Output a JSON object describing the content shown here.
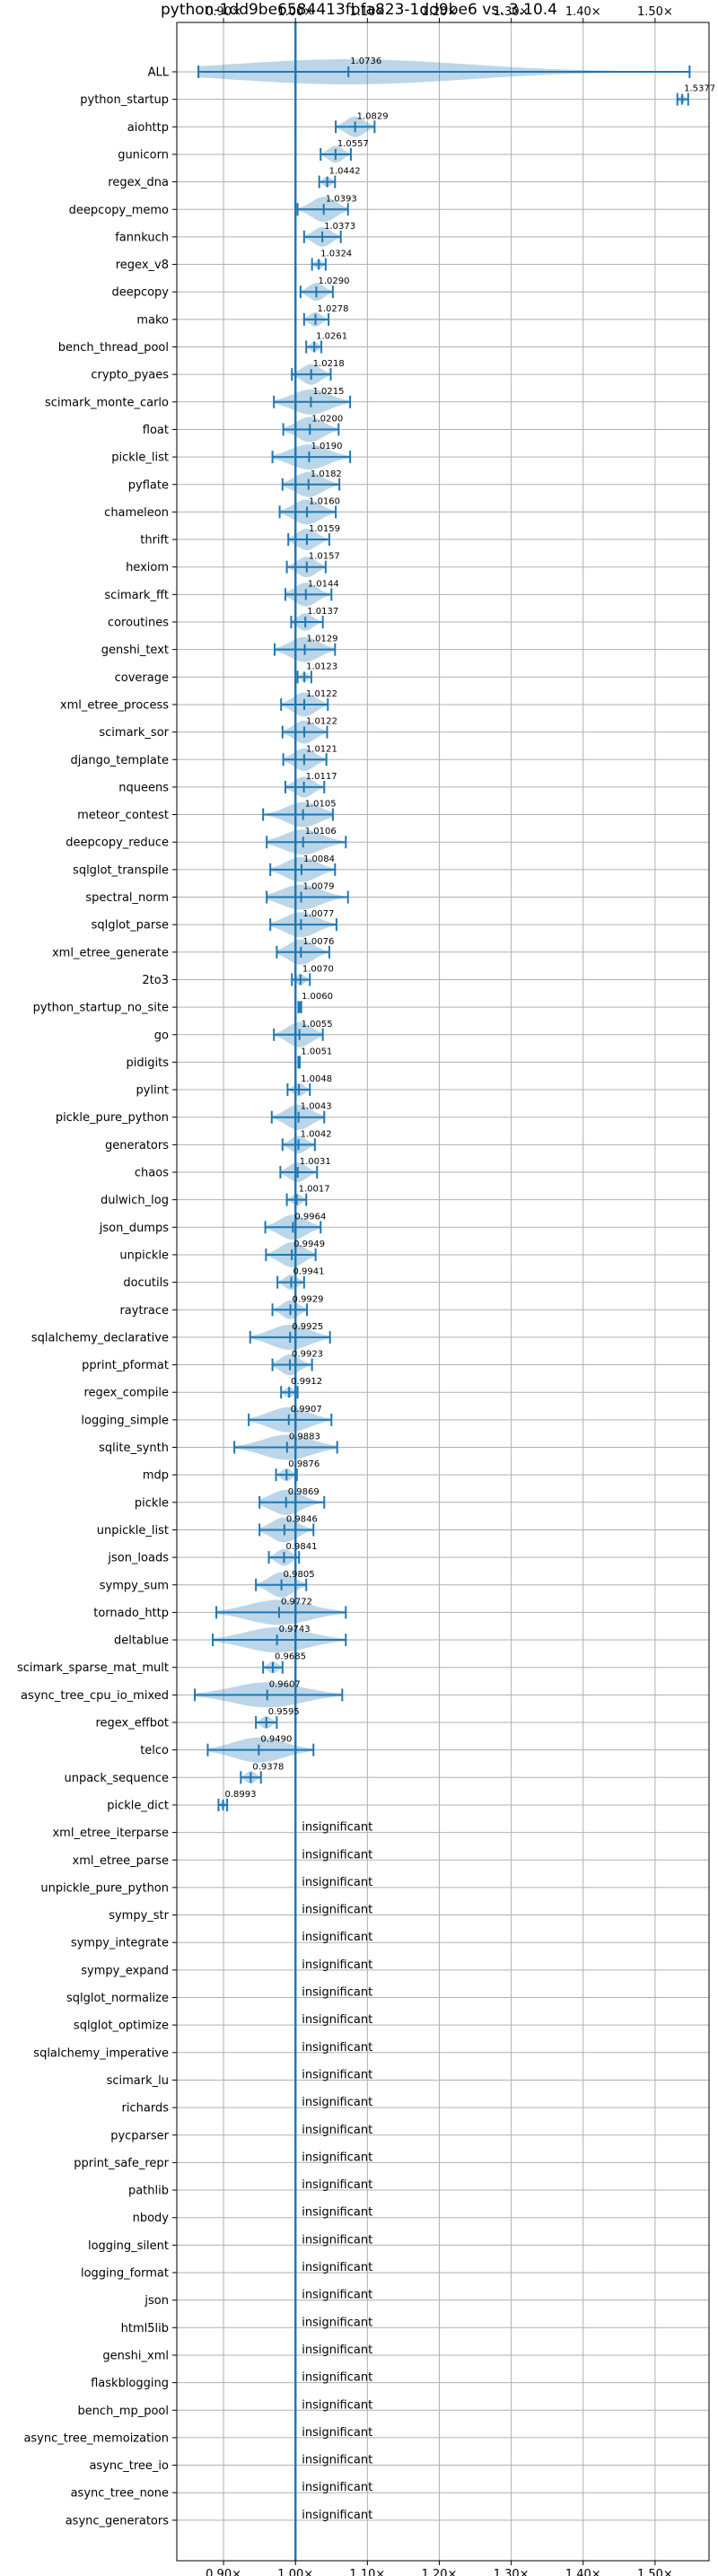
{
  "chart_data": {
    "type": "violin",
    "title": "python-1dd9be6584413fbfa823-1dd9be6 vs. 3.10.4",
    "xlabel": "",
    "ylabel": "",
    "xlim": [
      0.835,
      1.575
    ],
    "x_scale": "linear",
    "grid": true,
    "x_ticks": [
      0.9,
      1.0,
      1.1,
      1.2,
      1.3,
      1.4,
      1.5
    ],
    "x_tick_labels": [
      "0.90×",
      "1.00×",
      "1.10×",
      "1.20×",
      "1.30×",
      "1.40×",
      "1.50×"
    ],
    "baseline": 1.0,
    "insignificant_text": "insignificant",
    "benchmarks": [
      {
        "name": "ALL",
        "value": 1.0736,
        "label": "1.0736",
        "low": 0.865,
        "high": 1.548
      },
      {
        "name": "python_startup",
        "value": 1.5377,
        "label": "1.5377",
        "low": 1.531,
        "high": 1.546
      },
      {
        "name": "aiohttp",
        "value": 1.0829,
        "label": "1.0829",
        "low": 1.056,
        "high": 1.11
      },
      {
        "name": "gunicorn",
        "value": 1.0557,
        "label": "1.0557",
        "low": 1.035,
        "high": 1.077
      },
      {
        "name": "regex_dna",
        "value": 1.0442,
        "label": "1.0442",
        "low": 1.033,
        "high": 1.055
      },
      {
        "name": "deepcopy_memo",
        "value": 1.0393,
        "label": "1.0393",
        "low": 1.003,
        "high": 1.073
      },
      {
        "name": "fannkuch",
        "value": 1.0373,
        "label": "1.0373",
        "low": 1.012,
        "high": 1.063
      },
      {
        "name": "regex_v8",
        "value": 1.0324,
        "label": "1.0324",
        "low": 1.023,
        "high": 1.042
      },
      {
        "name": "deepcopy",
        "value": 1.029,
        "label": "1.0290",
        "low": 1.007,
        "high": 1.052
      },
      {
        "name": "mako",
        "value": 1.0278,
        "label": "1.0278",
        "low": 1.012,
        "high": 1.046
      },
      {
        "name": "bench_thread_pool",
        "value": 1.0261,
        "label": "1.0261",
        "low": 1.015,
        "high": 1.036
      },
      {
        "name": "crypto_pyaes",
        "value": 1.0218,
        "label": "1.0218",
        "low": 0.995,
        "high": 1.049
      },
      {
        "name": "scimark_monte_carlo",
        "value": 1.0215,
        "label": "1.0215",
        "low": 0.97,
        "high": 1.076
      },
      {
        "name": "float",
        "value": 1.02,
        "label": "1.0200",
        "low": 0.983,
        "high": 1.06
      },
      {
        "name": "pickle_list",
        "value": 1.019,
        "label": "1.0190",
        "low": 0.968,
        "high": 1.076
      },
      {
        "name": "pyflate",
        "value": 1.0182,
        "label": "1.0182",
        "low": 0.982,
        "high": 1.061
      },
      {
        "name": "chameleon",
        "value": 1.016,
        "label": "1.0160",
        "low": 0.978,
        "high": 1.056
      },
      {
        "name": "thrift",
        "value": 1.0159,
        "label": "1.0159",
        "low": 0.99,
        "high": 1.047
      },
      {
        "name": "hexiom",
        "value": 1.0157,
        "label": "1.0157",
        "low": 0.988,
        "high": 1.042
      },
      {
        "name": "scimark_fft",
        "value": 1.0144,
        "label": "1.0144",
        "low": 0.986,
        "high": 1.05
      },
      {
        "name": "coroutines",
        "value": 1.0137,
        "label": "1.0137",
        "low": 0.994,
        "high": 1.038
      },
      {
        "name": "genshi_text",
        "value": 1.0129,
        "label": "1.0129",
        "low": 0.971,
        "high": 1.055
      },
      {
        "name": "coverage",
        "value": 1.0123,
        "label": "1.0123",
        "low": 1.003,
        "high": 1.022
      },
      {
        "name": "xml_etree_process",
        "value": 1.0122,
        "label": "1.0122",
        "low": 0.98,
        "high": 1.045
      },
      {
        "name": "scimark_sor",
        "value": 1.0122,
        "label": "1.0122",
        "low": 0.982,
        "high": 1.044
      },
      {
        "name": "django_template",
        "value": 1.0121,
        "label": "1.0121",
        "low": 0.983,
        "high": 1.043
      },
      {
        "name": "nqueens",
        "value": 1.0117,
        "label": "1.0117",
        "low": 0.986,
        "high": 1.04
      },
      {
        "name": "meteor_contest",
        "value": 1.0105,
        "label": "1.0105",
        "low": 0.955,
        "high": 1.052
      },
      {
        "name": "deepcopy_reduce",
        "value": 1.0106,
        "label": "1.0106",
        "low": 0.96,
        "high": 1.07
      },
      {
        "name": "sqlglot_transpile",
        "value": 1.0084,
        "label": "1.0084",
        "low": 0.965,
        "high": 1.055
      },
      {
        "name": "spectral_norm",
        "value": 1.0079,
        "label": "1.0079",
        "low": 0.96,
        "high": 1.073
      },
      {
        "name": "sqlglot_parse",
        "value": 1.0077,
        "label": "1.0077",
        "low": 0.965,
        "high": 1.057
      },
      {
        "name": "xml_etree_generate",
        "value": 1.0076,
        "label": "1.0076",
        "low": 0.974,
        "high": 1.047
      },
      {
        "name": "2to3",
        "value": 1.007,
        "label": "1.0070",
        "low": 0.995,
        "high": 1.02
      },
      {
        "name": "python_startup_no_site",
        "value": 1.006,
        "label": "1.0060",
        "low": 1.004,
        "high": 1.008
      },
      {
        "name": "go",
        "value": 1.0055,
        "label": "1.0055",
        "low": 0.97,
        "high": 1.038
      },
      {
        "name": "pidigits",
        "value": 1.0051,
        "label": "1.0051",
        "low": 1.004,
        "high": 1.006
      },
      {
        "name": "pylint",
        "value": 1.0048,
        "label": "1.0048",
        "low": 0.989,
        "high": 1.02
      },
      {
        "name": "pickle_pure_python",
        "value": 1.0043,
        "label": "1.0043",
        "low": 0.967,
        "high": 1.04
      },
      {
        "name": "generators",
        "value": 1.0042,
        "label": "1.0042",
        "low": 0.982,
        "high": 1.027
      },
      {
        "name": "chaos",
        "value": 1.0031,
        "label": "1.0031",
        "low": 0.979,
        "high": 1.03
      },
      {
        "name": "dulwich_log",
        "value": 1.0017,
        "label": "1.0017",
        "low": 0.988,
        "high": 1.015
      },
      {
        "name": "json_dumps",
        "value": 0.9964,
        "label": "0.9964",
        "low": 0.958,
        "high": 1.035
      },
      {
        "name": "unpickle",
        "value": 0.9949,
        "label": "0.9949",
        "low": 0.959,
        "high": 1.028
      },
      {
        "name": "docutils",
        "value": 0.9941,
        "label": "0.9941",
        "low": 0.975,
        "high": 1.012
      },
      {
        "name": "raytrace",
        "value": 0.9929,
        "label": "0.9929",
        "low": 0.968,
        "high": 1.016
      },
      {
        "name": "sqlalchemy_declarative",
        "value": 0.9925,
        "label": "0.9925",
        "low": 0.937,
        "high": 1.048
      },
      {
        "name": "pprint_pformat",
        "value": 0.9923,
        "label": "0.9923",
        "low": 0.968,
        "high": 1.023
      },
      {
        "name": "regex_compile",
        "value": 0.9912,
        "label": "0.9912",
        "low": 0.98,
        "high": 1.003
      },
      {
        "name": "logging_simple",
        "value": 0.9907,
        "label": "0.9907",
        "low": 0.935,
        "high": 1.05
      },
      {
        "name": "sqlite_synth",
        "value": 0.9883,
        "label": "0.9883",
        "low": 0.915,
        "high": 1.058
      },
      {
        "name": "mdp",
        "value": 0.9876,
        "label": "0.9876",
        "low": 0.973,
        "high": 1.002
      },
      {
        "name": "pickle",
        "value": 0.9869,
        "label": "0.9869",
        "low": 0.95,
        "high": 1.04
      },
      {
        "name": "unpickle_list",
        "value": 0.9846,
        "label": "0.9846",
        "low": 0.95,
        "high": 1.025
      },
      {
        "name": "json_loads",
        "value": 0.9841,
        "label": "0.9841",
        "low": 0.963,
        "high": 1.005
      },
      {
        "name": "sympy_sum",
        "value": 0.9805,
        "label": "0.9805",
        "low": 0.945,
        "high": 1.015
      },
      {
        "name": "tornado_http",
        "value": 0.9772,
        "label": "0.9772",
        "low": 0.89,
        "high": 1.07
      },
      {
        "name": "deltablue",
        "value": 0.9743,
        "label": "0.9743",
        "low": 0.885,
        "high": 1.07
      },
      {
        "name": "scimark_sparse_mat_mult",
        "value": 0.9685,
        "label": "0.9685",
        "low": 0.955,
        "high": 0.982
      },
      {
        "name": "async_tree_cpu_io_mixed",
        "value": 0.9607,
        "label": "0.9607",
        "low": 0.86,
        "high": 1.065
      },
      {
        "name": "regex_effbot",
        "value": 0.9595,
        "label": "0.9595",
        "low": 0.945,
        "high": 0.974
      },
      {
        "name": "telco",
        "value": 0.949,
        "label": "0.9490",
        "low": 0.878,
        "high": 1.025
      },
      {
        "name": "unpack_sequence",
        "value": 0.9378,
        "label": "0.9378",
        "low": 0.924,
        "high": 0.952
      },
      {
        "name": "pickle_dict",
        "value": 0.8993,
        "label": "0.8993",
        "low": 0.893,
        "high": 0.905
      },
      {
        "name": "xml_etree_iterparse",
        "value": null,
        "label": "",
        "low": null,
        "high": null
      },
      {
        "name": "xml_etree_parse",
        "value": null,
        "label": "",
        "low": null,
        "high": null
      },
      {
        "name": "unpickle_pure_python",
        "value": null,
        "label": "",
        "low": null,
        "high": null
      },
      {
        "name": "sympy_str",
        "value": null,
        "label": "",
        "low": null,
        "high": null
      },
      {
        "name": "sympy_integrate",
        "value": null,
        "label": "",
        "low": null,
        "high": null
      },
      {
        "name": "sympy_expand",
        "value": null,
        "label": "",
        "low": null,
        "high": null
      },
      {
        "name": "sqlglot_normalize",
        "value": null,
        "label": "",
        "low": null,
        "high": null
      },
      {
        "name": "sqlglot_optimize",
        "value": null,
        "label": "",
        "low": null,
        "high": null
      },
      {
        "name": "sqlalchemy_imperative",
        "value": null,
        "label": "",
        "low": null,
        "high": null
      },
      {
        "name": "scimark_lu",
        "value": null,
        "label": "",
        "low": null,
        "high": null
      },
      {
        "name": "richards",
        "value": null,
        "label": "",
        "low": null,
        "high": null
      },
      {
        "name": "pycparser",
        "value": null,
        "label": "",
        "low": null,
        "high": null
      },
      {
        "name": "pprint_safe_repr",
        "value": null,
        "label": "",
        "low": null,
        "high": null
      },
      {
        "name": "pathlib",
        "value": null,
        "label": "",
        "low": null,
        "high": null
      },
      {
        "name": "nbody",
        "value": null,
        "label": "",
        "low": null,
        "high": null
      },
      {
        "name": "logging_silent",
        "value": null,
        "label": "",
        "low": null,
        "high": null
      },
      {
        "name": "logging_format",
        "value": null,
        "label": "",
        "low": null,
        "high": null
      },
      {
        "name": "json",
        "value": null,
        "label": "",
        "low": null,
        "high": null
      },
      {
        "name": "html5lib",
        "value": null,
        "label": "",
        "low": null,
        "high": null
      },
      {
        "name": "genshi_xml",
        "value": null,
        "label": "",
        "low": null,
        "high": null
      },
      {
        "name": "flaskblogging",
        "value": null,
        "label": "",
        "low": null,
        "high": null
      },
      {
        "name": "bench_mp_pool",
        "value": null,
        "label": "",
        "low": null,
        "high": null
      },
      {
        "name": "async_tree_memoization",
        "value": null,
        "label": "",
        "low": null,
        "high": null
      },
      {
        "name": "async_tree_io",
        "value": null,
        "label": "",
        "low": null,
        "high": null
      },
      {
        "name": "async_tree_none",
        "value": null,
        "label": "",
        "low": null,
        "high": null
      },
      {
        "name": "async_generators",
        "value": null,
        "label": "",
        "low": null,
        "high": null
      }
    ],
    "colors": {
      "series": "#1f77b4",
      "grid": "#b0b0b0",
      "axis": "#000000"
    }
  }
}
